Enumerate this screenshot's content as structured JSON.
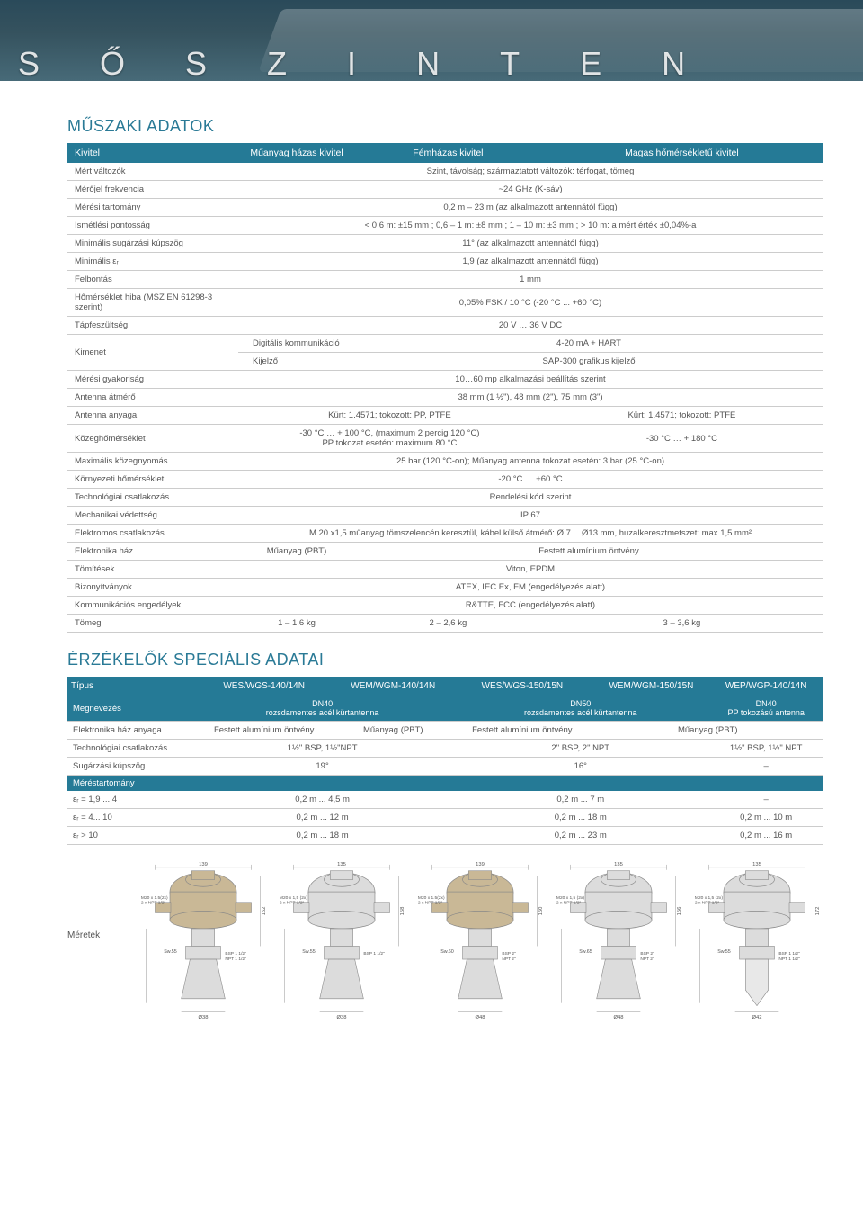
{
  "header_letters": [
    "S",
    "Ő",
    "S",
    "Z",
    "I",
    "N",
    "T",
    "E",
    "N"
  ],
  "sec1_title": "MŰSZAKI ADATOK",
  "sec2_title": "ÉRZÉKELŐK SPECIÁLIS ADATAI",
  "spec1": {
    "columns": [
      "Kivitel",
      "Műanyag házas kivitel",
      "Fémházas kivitel",
      "Magas hőmérsékletű kivitel"
    ],
    "rows": [
      {
        "lbl": "Mért változók",
        "val": "Szint, távolság; származtatott változók: térfogat, tömeg",
        "span": 3
      },
      {
        "lbl": "Mérőjel frekvencia",
        "val": "~24 GHz (K-sáv)",
        "span": 3
      },
      {
        "lbl": "Mérési tartomány",
        "val": "0,2 m – 23 m (az alkalmazott antennától függ)",
        "span": 3
      },
      {
        "lbl": "Ismétlési pontosság",
        "val": "< 0,6 m: ±15 mm ; 0,6 – 1 m: ±8 mm ; 1 – 10 m: ±3 mm ; > 10 m: a mért érték ±0,04%-a",
        "span": 3
      },
      {
        "lbl": "Minimális sugárzási kúpszög",
        "val": "11° (az alkalmazott antennától függ)",
        "span": 3
      },
      {
        "lbl": "Minimális εᵣ",
        "val": "1,9 (az alkalmazott antennától függ)",
        "span": 3
      },
      {
        "lbl": "Felbontás",
        "val": "1 mm",
        "span": 3
      },
      {
        "lbl": "Hőmérséklet hiba (MSZ EN 61298-3 szerint)",
        "val": "0,05% FSK / 10 °C (-20 °C ... +60 °C)",
        "span": 3
      },
      {
        "lbl": "Tápfeszültség",
        "val": "20 V … 36 V DC",
        "span": 3
      }
    ],
    "kimenet_lbl": "Kimenet",
    "kimenet_rows": [
      {
        "sub": "Digitális kommunikáció",
        "val": "4-20 mA + HART"
      },
      {
        "sub": "Kijelző",
        "val": "SAP-300 grafikus kijelző"
      }
    ],
    "rows2": [
      {
        "lbl": "Mérési gyakoriság",
        "val": "10…60 mp alkalmazási beállítás szerint",
        "span": 3
      },
      {
        "lbl": "Antenna átmérő",
        "val": "38 mm (1 ½\"), 48 mm (2\"), 75 mm (3\")",
        "span": 3
      }
    ],
    "row_antenna": {
      "lbl": "Antenna anyaga",
      "v1": "Kürt: 1.4571; tokozott: PP, PTFE",
      "v2": "Kürt: 1.4571; tokozott: PTFE"
    },
    "row_kozegh": {
      "lbl": "Közeghőmérséklet",
      "v1": "-30 °C … + 100 °C, (maximum 2 percig 120 °C)\nPP tokozat esetén: maximum 80 °C",
      "v2": "-30 °C … + 180 °C"
    },
    "rows3": [
      {
        "lbl": "Maximális közegnyomás",
        "val": "25 bar (120 °C-on); Műanyag antenna tokozat esetén: 3 bar (25 °C-on)",
        "span": 3
      },
      {
        "lbl": "Környezeti hőmérséklet",
        "val": "-20 °C … +60 °C",
        "span": 3
      },
      {
        "lbl": "Technológiai csatlakozás",
        "val": "Rendelési kód szerint",
        "span": 3
      },
      {
        "lbl": "Mechanikai védettség",
        "val": "IP 67",
        "span": 3
      },
      {
        "lbl": "Elektromos csatlakozás",
        "val": "M 20 x1,5 műanyag tömszelencén keresztül, kábel külső átmérő: Ø 7 …Ø13 mm, huzalkeresztmetszet: max.1,5 mm²",
        "span": 3
      }
    ],
    "row_ehaz": {
      "lbl": "Elektronika ház",
      "v1": "Műanyag (PBT)",
      "v2": "Festett alumínium öntvény"
    },
    "rows4": [
      {
        "lbl": "Tömítések",
        "val": "Viton, EPDM",
        "span": 3
      },
      {
        "lbl": "Bizonyítványok",
        "val": "ATEX, IEC Ex, FM (engedélyezés alatt)",
        "span": 3
      },
      {
        "lbl": "Kommunikációs engedélyek",
        "val": "R&TTE, FCC (engedélyezés alatt)",
        "span": 3
      }
    ],
    "row_tomeg": {
      "lbl": "Tömeg",
      "v1": "1 – 1,6 kg",
      "v2": "2 – 2,6 kg",
      "v3": "3 – 3,6 kg"
    }
  },
  "spec2": {
    "columns": [
      "Típus",
      "WES/WGS-140/14N",
      "WEM/WGM-140/14N",
      "WES/WGS-150/15N",
      "WEM/WGM-150/15N",
      "WEP/WGP-140/14N"
    ],
    "megnevez_lbl": "Megnevezés",
    "megnevez": [
      "DN40\nrozsdamentes acél kürtantenna",
      "DN50\nrozsdamentes acél kürtantenna",
      "DN40\nPP tokozású antenna"
    ],
    "rows": [
      {
        "lbl": "Elektronika ház anyaga",
        "cells": [
          "Festett alumínium öntvény",
          "Műanyag (PBT)",
          "Festett alumínium öntvény",
          "Műanyag (PBT)",
          ""
        ],
        "merges": [
          [
            3,
            4
          ]
        ]
      },
      {
        "lbl": "Technológiai csatlakozás",
        "cells": [
          "1½\" BSP, 1½\"NPT",
          "",
          "2\" BSP, 2\" NPT",
          "",
          "1½\" BSP, 1½\" NPT"
        ],
        "merges": [
          [
            0,
            1
          ],
          [
            2,
            3
          ]
        ]
      },
      {
        "lbl": "Sugárzási kúpszög",
        "cells": [
          "19°",
          "",
          "16°",
          "",
          "–"
        ],
        "merges": [
          [
            0,
            1
          ],
          [
            2,
            3
          ]
        ]
      }
    ],
    "range_hdr": "Méréstartomány",
    "range_rows": [
      {
        "lbl": "εᵣ = 1,9 ... 4",
        "cells": [
          "0,2 m ... 4,5 m",
          "",
          "0,2 m ... 7 m",
          "",
          "–"
        ],
        "merges": [
          [
            0,
            1
          ],
          [
            2,
            3
          ]
        ]
      },
      {
        "lbl": "εᵣ = 4... 10",
        "cells": [
          "0,2 m ... 12 m",
          "",
          "0,2 m ... 18 m",
          "",
          "0,2 m ... 10 m"
        ],
        "merges": [
          [
            0,
            1
          ],
          [
            2,
            3
          ]
        ]
      },
      {
        "lbl": "εᵣ > 10",
        "cells": [
          "0,2 m ... 18 m",
          "",
          "0,2 m ... 23 m",
          "",
          "0,2 m ... 16 m"
        ],
        "merges": [
          [
            0,
            1
          ],
          [
            2,
            3
          ]
        ]
      }
    ]
  },
  "meretek_lbl": "Méretek",
  "drawings": [
    {
      "w": "139",
      "gland": "M20 x 1.5(2x)\n2 x NPT 1/2\"",
      "sw": "Sw.55",
      "flange": "BSP 1 1/2\"\nNPT 1 1/2\"",
      "dia": "Ø38",
      "h": "152",
      "cone": true,
      "housing": "al"
    },
    {
      "w": "135",
      "gland": "M20 x 1,5 (2x)\n2 x NPT 1/2\"",
      "sw": "Sw.55",
      "flange": "BSP 1 1/2\"",
      "dia": "Ø38",
      "h": "158",
      "cone": true,
      "housing": "pl"
    },
    {
      "w": "139",
      "gland": "M20 x 1.5(2x)\n2 x NPT 1/2\"",
      "sw": "Sw.60",
      "flange": "BSP 2\"\nNPT 2\"",
      "dia": "Ø48",
      "h": "150",
      "cone": true,
      "housing": "al"
    },
    {
      "w": "135",
      "gland": "M20 x 1,5 (2x)\n2 x NPT 1/2\"",
      "sw": "Sw.65",
      "flange": "BSP 2\"\nNPT 2\"",
      "dia": "Ø48",
      "h": "156",
      "cone": true,
      "housing": "pl"
    },
    {
      "w": "135",
      "gland": "M20 x 1,5 (2x)\n2 x NPT 1/2\"",
      "sw": "Sw.55",
      "flange": "BSP 1 1/2\"\nNPT 1 1/2\"",
      "dia": "Ø42",
      "h": "172",
      "cone": false,
      "housing": "pl"
    }
  ],
  "colors": {
    "teal": "#257a96",
    "hdr_bg": "#35525e",
    "text": "#555555",
    "line": "#cccccc",
    "dwg_tan": "#c9b896",
    "dwg_gray": "#dcdcdc"
  }
}
